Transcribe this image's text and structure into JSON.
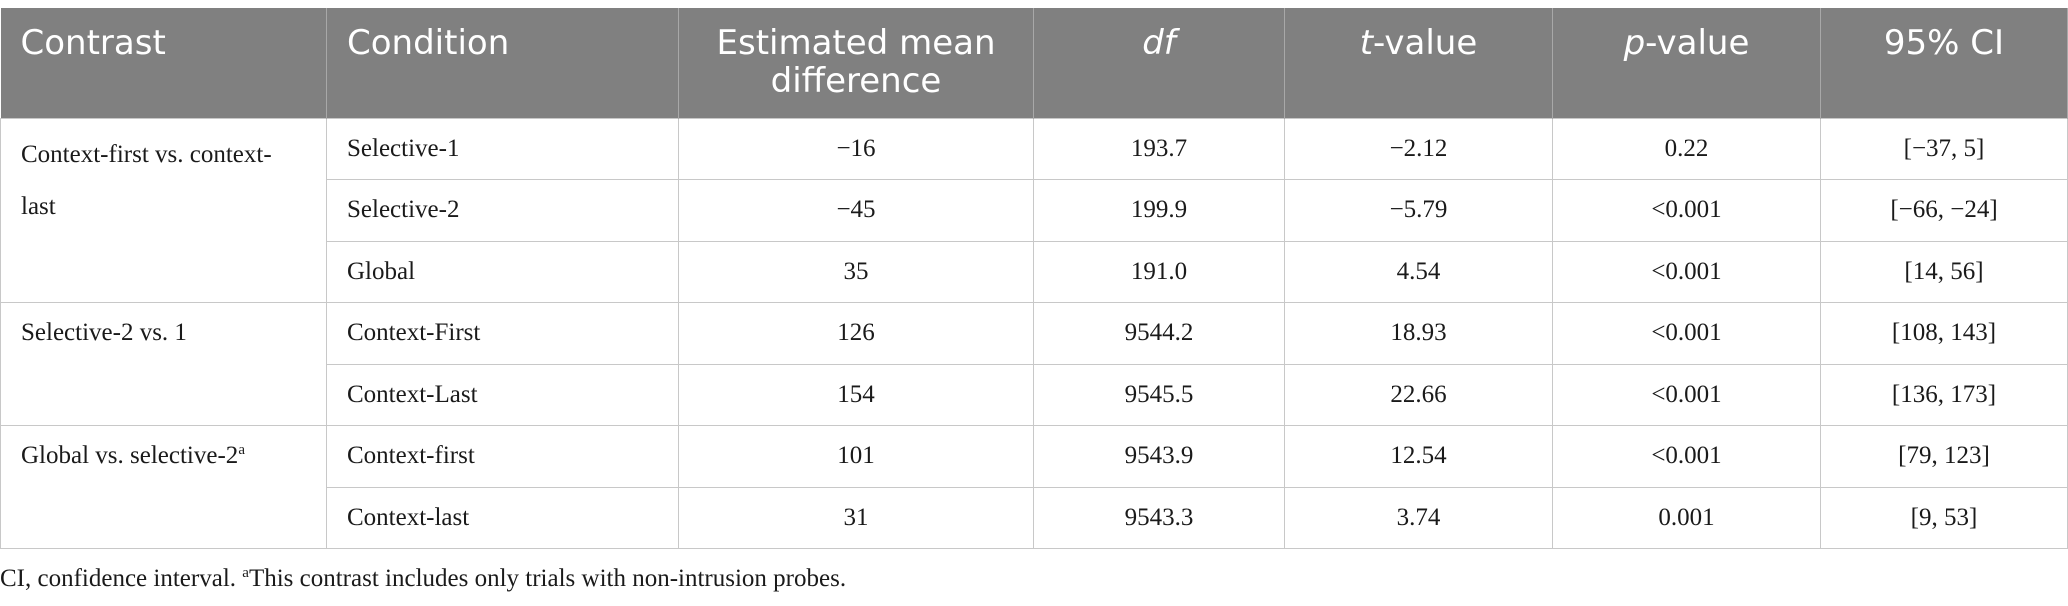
{
  "table": {
    "headers": {
      "contrast": "Contrast",
      "condition": "Condition",
      "mean_diff": "Estimated mean difference",
      "df": "df",
      "t_italic": "t",
      "t_rest": "-value",
      "p_italic": "p",
      "p_rest": "-value",
      "ci": "95% CI"
    },
    "groups": [
      {
        "contrast": "Context-first vs. context-last",
        "contrast_sup": "",
        "rows": [
          {
            "condition": "Selective-1",
            "mean_diff": "−16",
            "df": "193.7",
            "t": "−2.12",
            "p": "0.22",
            "ci": "[−37, 5]"
          },
          {
            "condition": "Selective-2",
            "mean_diff": "−45",
            "df": "199.9",
            "t": "−5.79",
            "p": "<0.001",
            "ci": "[−66, −24]"
          },
          {
            "condition": "Global",
            "mean_diff": "35",
            "df": "191.0",
            "t": "4.54",
            "p": "<0.001",
            "ci": "[14, 56]"
          }
        ]
      },
      {
        "contrast": "Selective-2 vs. 1",
        "contrast_sup": "",
        "rows": [
          {
            "condition": "Context-First",
            "mean_diff": "126",
            "df": "9544.2",
            "t": "18.93",
            "p": "<0.001",
            "ci": "[108, 143]"
          },
          {
            "condition": "Context-Last",
            "mean_diff": "154",
            "df": "9545.5",
            "t": "22.66",
            "p": "<0.001",
            "ci": "[136, 173]"
          }
        ]
      },
      {
        "contrast": "Global vs. selective-2",
        "contrast_sup": "a",
        "rows": [
          {
            "condition": "Context-first",
            "mean_diff": "101",
            "df": "9543.9",
            "t": "12.54",
            "p": "<0.001",
            "ci": "[79, 123]"
          },
          {
            "condition": "Context-last",
            "mean_diff": "31",
            "df": "9543.3",
            "t": "3.74",
            "p": "0.001",
            "ci": "[9, 53]"
          }
        ]
      }
    ]
  },
  "footnote": {
    "text": "CI, confidence interval. ",
    "sup": "a",
    "note": "This contrast includes only trials with non-intrusion probes."
  }
}
